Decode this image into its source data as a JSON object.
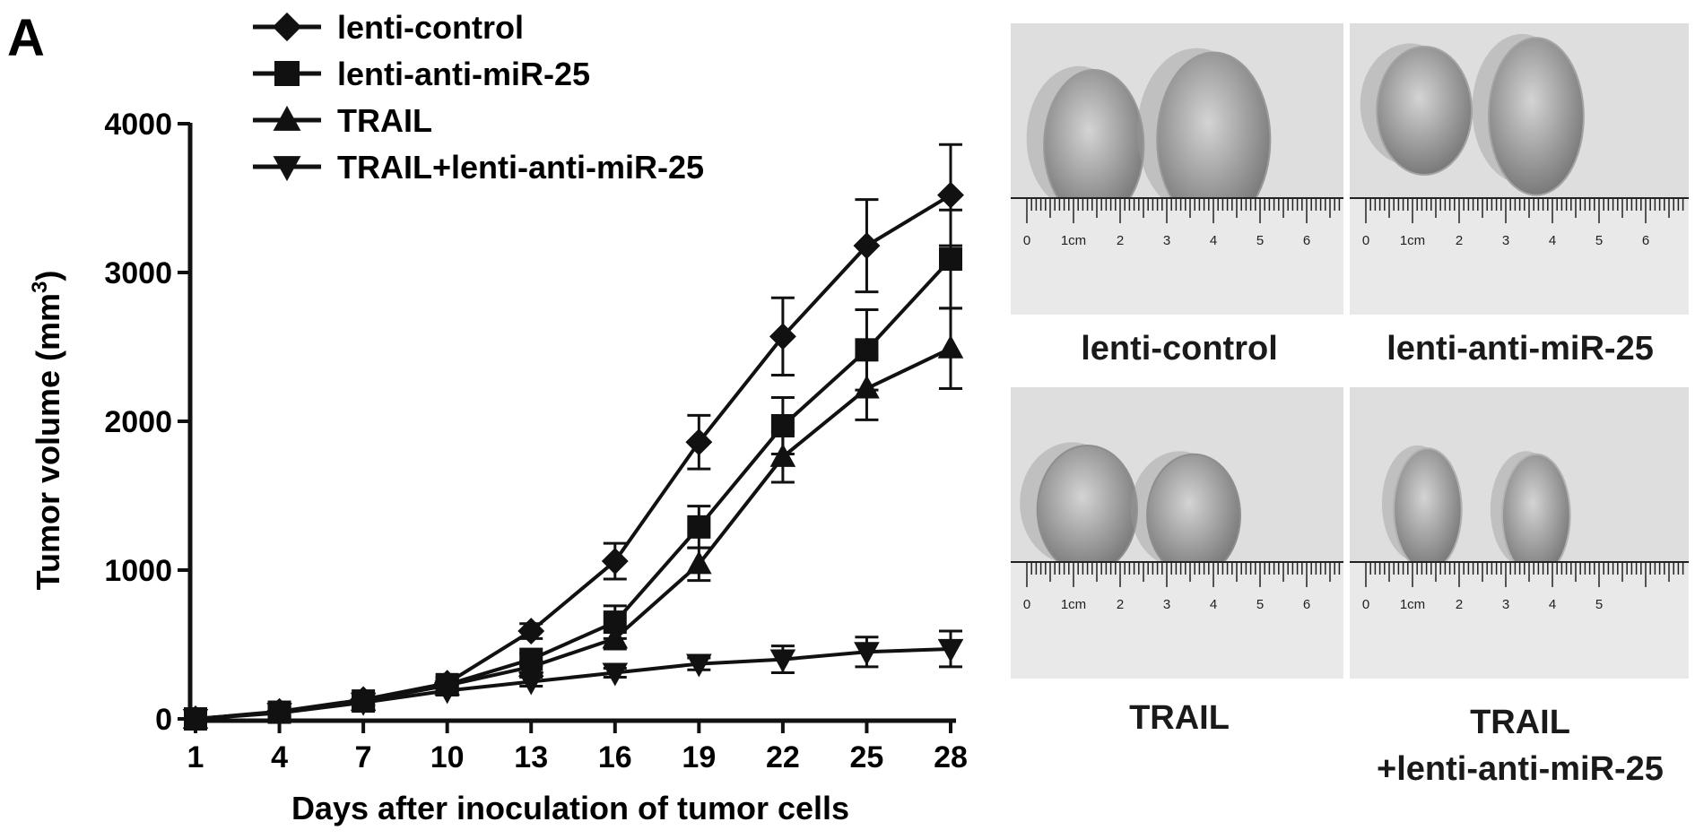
{
  "panel_label": "A",
  "chart_data": {
    "type": "line",
    "title": "",
    "xlabel": "Days after inoculation of tumor cells",
    "ylabel": "Tumor volume (mm",
    "ylabel_superscript": "3",
    "ylabel_close": ")",
    "x": [
      1,
      4,
      7,
      10,
      13,
      16,
      19,
      22,
      25,
      28
    ],
    "ylim": [
      0,
      4000
    ],
    "yticks": [
      0,
      1000,
      2000,
      3000,
      4000
    ],
    "legend_position": "top-left",
    "grid": false,
    "series": [
      {
        "name": "lenti-control",
        "marker": "diamond",
        "values": [
          0,
          50,
          130,
          240,
          590,
          1060,
          1860,
          2570,
          3180,
          3520
        ],
        "errors": [
          10,
          30,
          30,
          40,
          50,
          120,
          180,
          260,
          310,
          340
        ]
      },
      {
        "name": "lenti-anti-miR-25",
        "marker": "square",
        "values": [
          0,
          45,
          120,
          230,
          400,
          650,
          1290,
          1970,
          2480,
          3090
        ],
        "errors": [
          10,
          30,
          30,
          40,
          40,
          110,
          140,
          190,
          270,
          330
        ]
      },
      {
        "name": "TRAIL",
        "marker": "triangle-up",
        "values": [
          0,
          45,
          120,
          225,
          350,
          540,
          1040,
          1760,
          2220,
          2490
        ],
        "errors": [
          10,
          30,
          30,
          40,
          40,
          70,
          110,
          170,
          210,
          270
        ]
      },
      {
        "name": "TRAIL+lenti-anti-miR-25",
        "marker": "triangle-down",
        "values": [
          0,
          40,
          110,
          190,
          250,
          310,
          370,
          400,
          450,
          470
        ],
        "errors": [
          10,
          30,
          30,
          30,
          30,
          30,
          40,
          90,
          100,
          120
        ]
      }
    ]
  },
  "photos": [
    {
      "caption_lines": [
        "lenti-control"
      ],
      "ruler_labels": [
        "0",
        "1cm",
        "2",
        "3",
        "4",
        "5",
        "6"
      ],
      "tumor_tone": "#9a9a9a"
    },
    {
      "caption_lines": [
        "lenti-anti-miR-25"
      ],
      "ruler_labels": [
        "0",
        "1cm",
        "2",
        "3",
        "4",
        "5",
        "6"
      ],
      "tumor_tone": "#a4a4a4"
    },
    {
      "caption_lines": [
        "TRAIL"
      ],
      "ruler_labels": [
        "0",
        "1cm",
        "2",
        "3",
        "4",
        "5",
        "6"
      ],
      "tumor_tone": "#8e8e8e"
    },
    {
      "caption_lines": [
        "TRAIL",
        "+lenti-anti-miR-25"
      ],
      "ruler_labels": [
        "0",
        "1cm",
        "2",
        "3",
        "4",
        "5"
      ],
      "tumor_tone": "#b2b2b2"
    }
  ]
}
